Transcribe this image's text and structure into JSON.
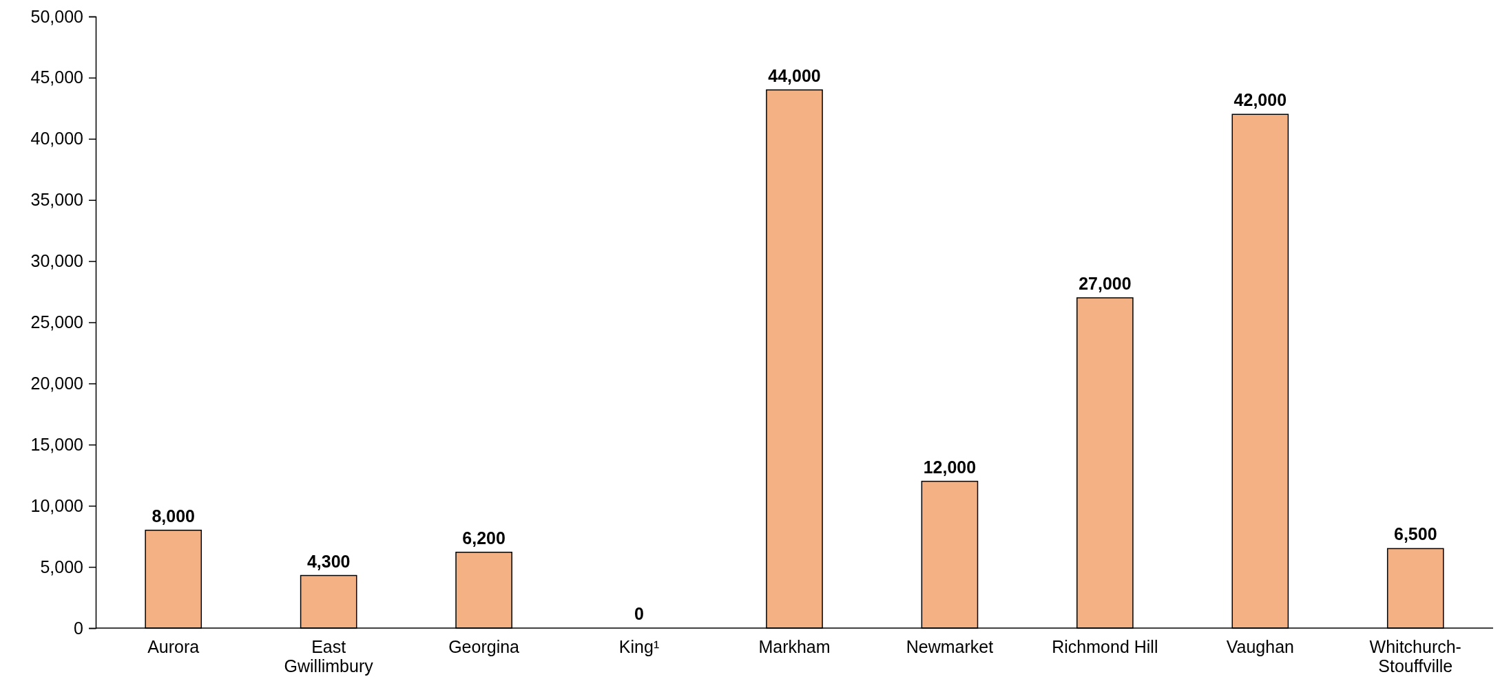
{
  "chart_data": {
    "type": "bar",
    "categories": [
      "Aurora",
      "East Gwillimbury",
      "Georgina",
      "King¹",
      "Markham",
      "Newmarket",
      "Richmond Hill",
      "Vaughan",
      "Whitchurch-Stouffville"
    ],
    "values": [
      8000,
      4300,
      6200,
      0,
      44000,
      12000,
      27000,
      42000,
      6500
    ],
    "value_labels": [
      "8,000",
      "4,300",
      "6,200",
      "0",
      "44,000",
      "12,000",
      "27,000",
      "42,000",
      "6,500"
    ],
    "color": "#f4b183",
    "ylim": [
      0,
      50000
    ],
    "yticks": [
      {
        "value": 0,
        "label": "0"
      },
      {
        "value": 5000,
        "label": "5,000"
      },
      {
        "value": 10000,
        "label": "10,000"
      },
      {
        "value": 15000,
        "label": "15,000"
      },
      {
        "value": 20000,
        "label": "20,000"
      },
      {
        "value": 25000,
        "label": "25,000"
      },
      {
        "value": 30000,
        "label": "30,000"
      },
      {
        "value": 35000,
        "label": "35,000"
      },
      {
        "value": 40000,
        "label": "40,000"
      },
      {
        "value": 45000,
        "label": "45,000"
      },
      {
        "value": 50000,
        "label": "50,000"
      }
    ]
  }
}
